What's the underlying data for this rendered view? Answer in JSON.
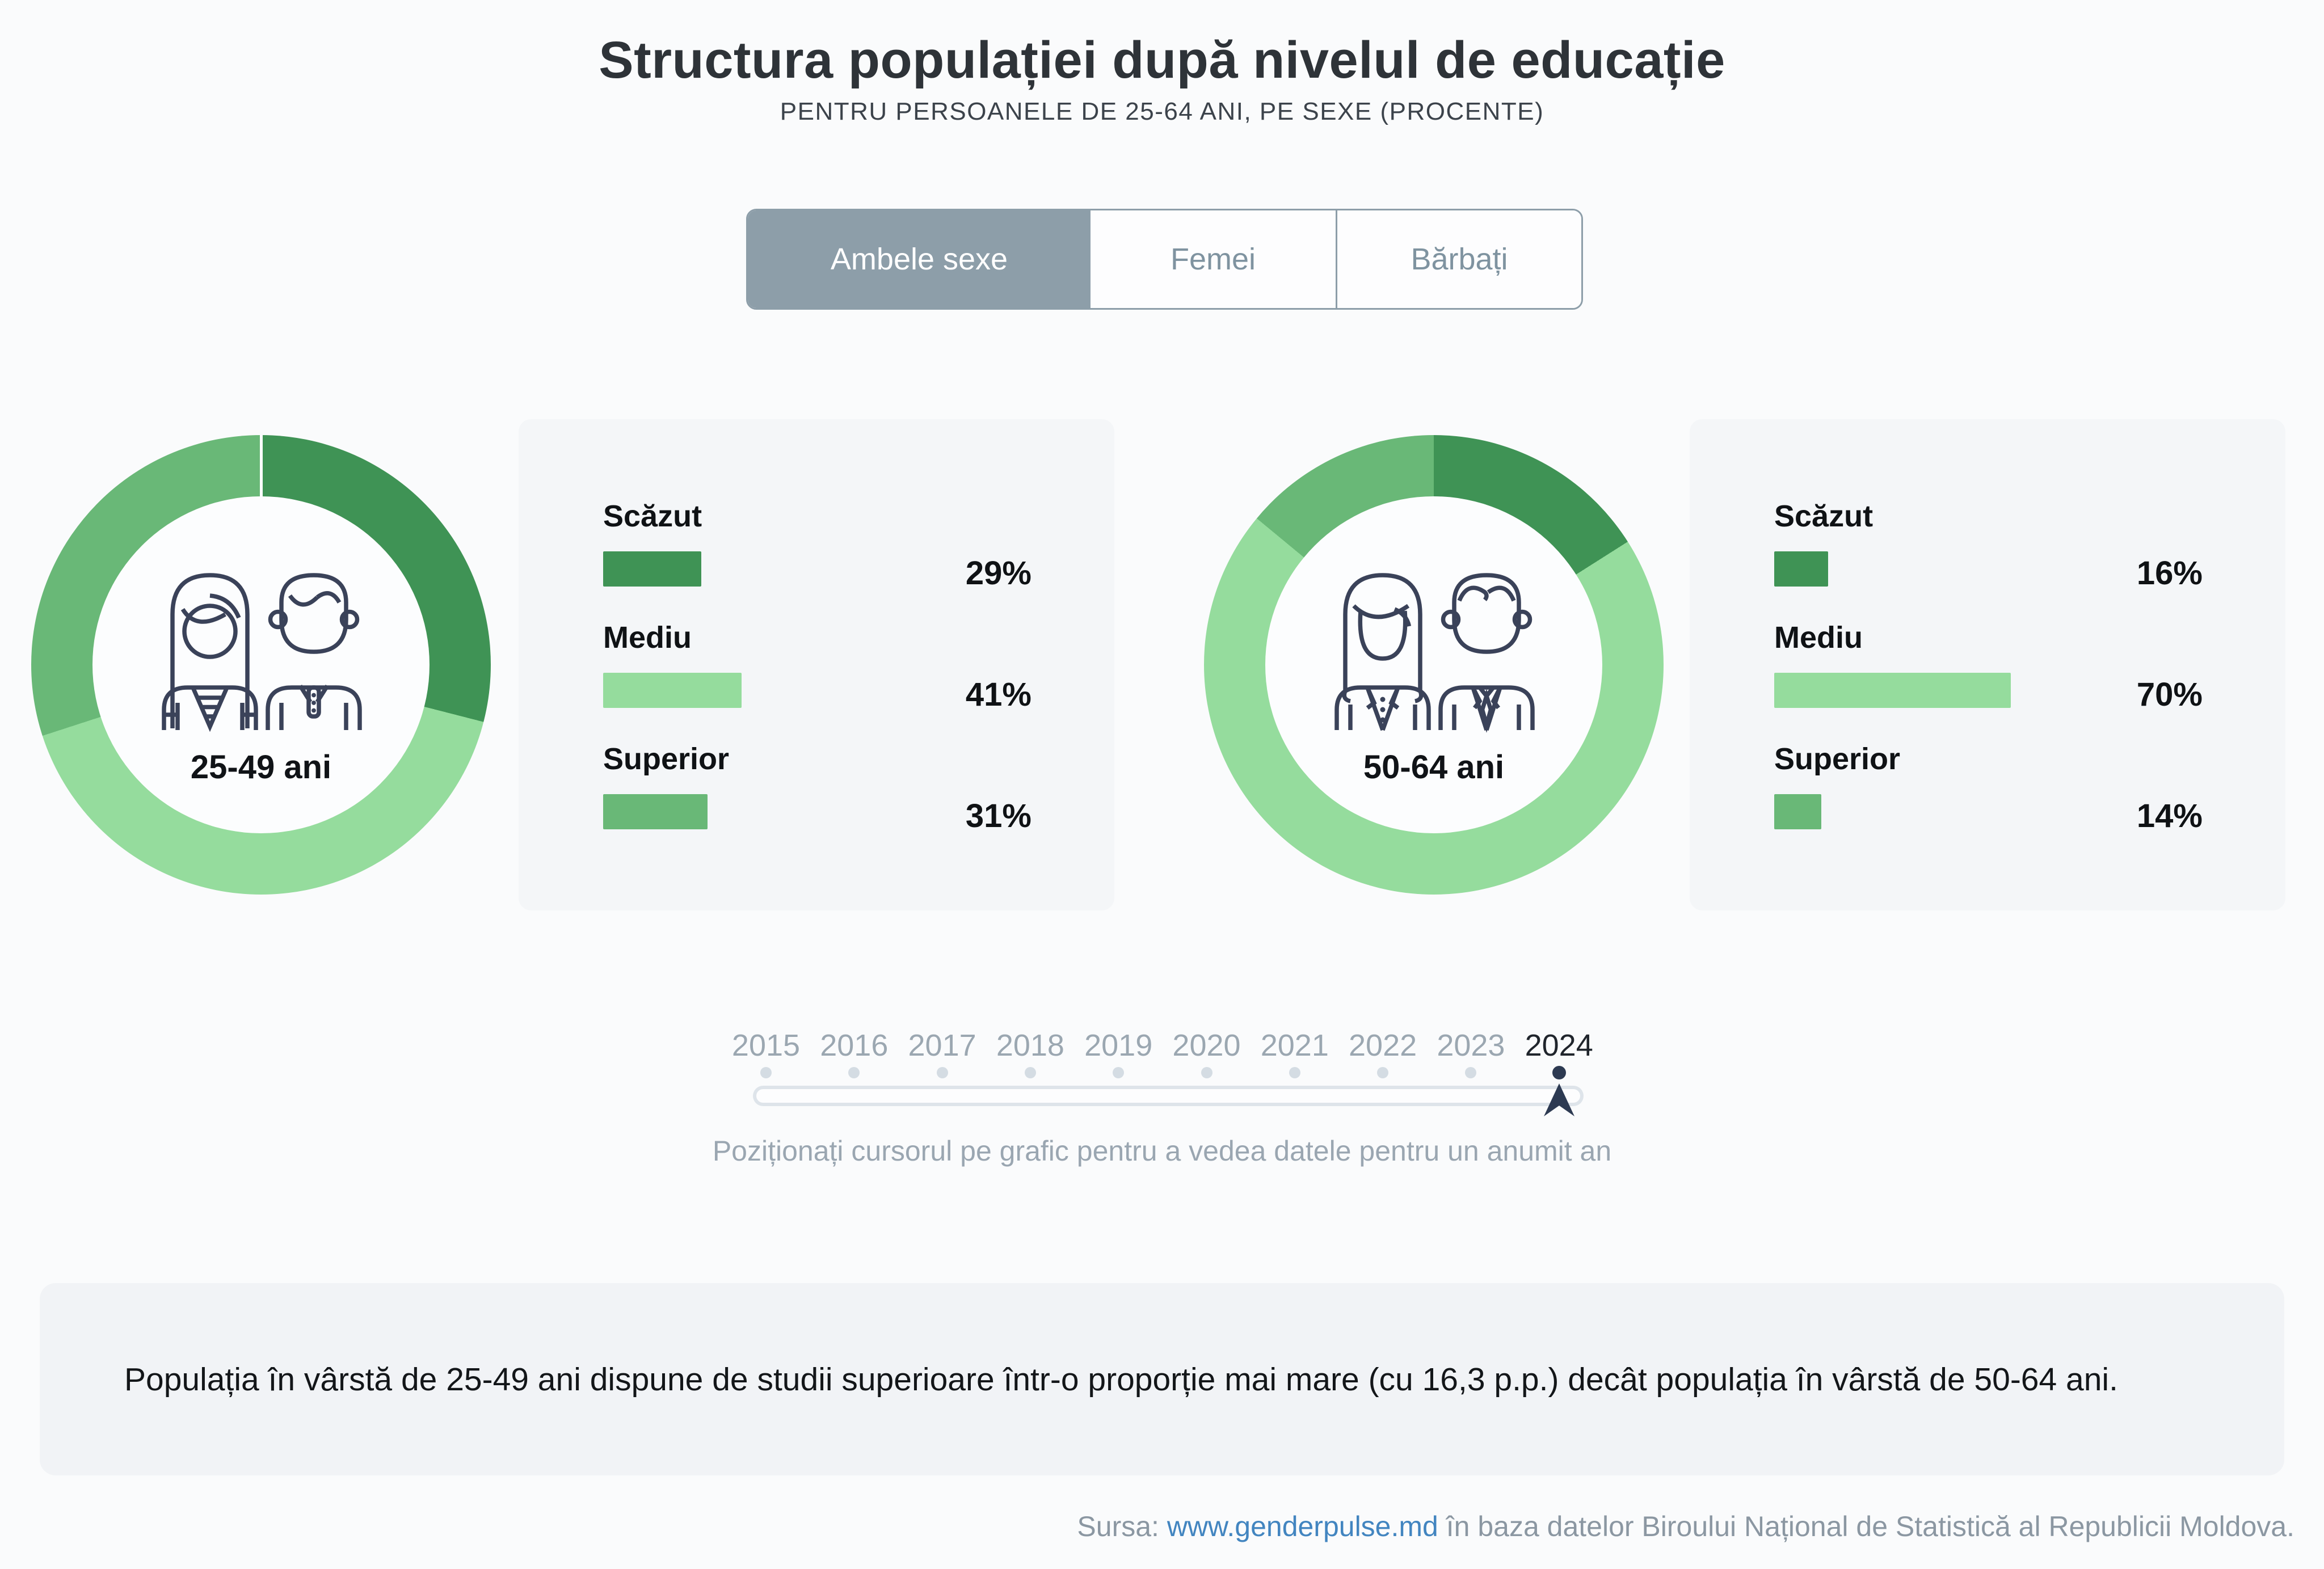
{
  "header": {
    "title": "Structura populației după nivelul de educație",
    "subtitle": "PENTRU PERSOANELE DE 25-64 ANI, PE SEXE (PROCENTE)"
  },
  "tabs": [
    {
      "label": "Ambele sexe",
      "selected": true
    },
    {
      "label": "Femei",
      "selected": false
    },
    {
      "label": "Bărbați",
      "selected": false
    }
  ],
  "chart_data": [
    {
      "type": "pie",
      "style": "donut",
      "group_label": "25-49 ani",
      "icon": "young-couple-icon",
      "categories": [
        "Scăzut",
        "Mediu",
        "Superior"
      ],
      "values": [
        29,
        41,
        31
      ],
      "value_labels": [
        "29%",
        "41%",
        "31%"
      ],
      "colors": [
        "#3f9355",
        "#95dc9d",
        "#69b877"
      ],
      "start_angle": 0,
      "direction": "clockwise",
      "legend_position": "right"
    },
    {
      "type": "pie",
      "style": "donut",
      "group_label": "50-64 ani",
      "icon": "older-couple-icon",
      "categories": [
        "Scăzut",
        "Mediu",
        "Superior"
      ],
      "values": [
        16,
        70,
        14
      ],
      "value_labels": [
        "16%",
        "70%",
        "14%"
      ],
      "colors": [
        "#3f9355",
        "#95dc9d",
        "#69b877"
      ],
      "start_angle": 0,
      "direction": "clockwise",
      "legend_position": "right"
    }
  ],
  "timeline": {
    "years": [
      "2015",
      "2016",
      "2017",
      "2018",
      "2019",
      "2020",
      "2021",
      "2022",
      "2023",
      "2024"
    ],
    "selected_year": "2024",
    "hint": "Poziționați cursorul pe grafic pentru a vedea datele pentru un anumit an"
  },
  "note": {
    "text": "Populația în vârstă de 25-49 ani dispune de studii superioare într-o proporție mai mare (cu 16,3 p.p.) decât populația în vârstă de 50-64 ani."
  },
  "footer": {
    "prefix": "Sursa: ",
    "link": "www.genderpulse.md",
    "suffix": " în baza datelor Biroului Național de Statistică al Republicii Moldova."
  },
  "colors": {
    "accent_tab": "#8d9ea9",
    "dark_green": "#3f9355",
    "light_green": "#95dc9d",
    "mid_green": "#69b877",
    "navy": "#2d3a52",
    "link_blue": "#4285c0"
  }
}
